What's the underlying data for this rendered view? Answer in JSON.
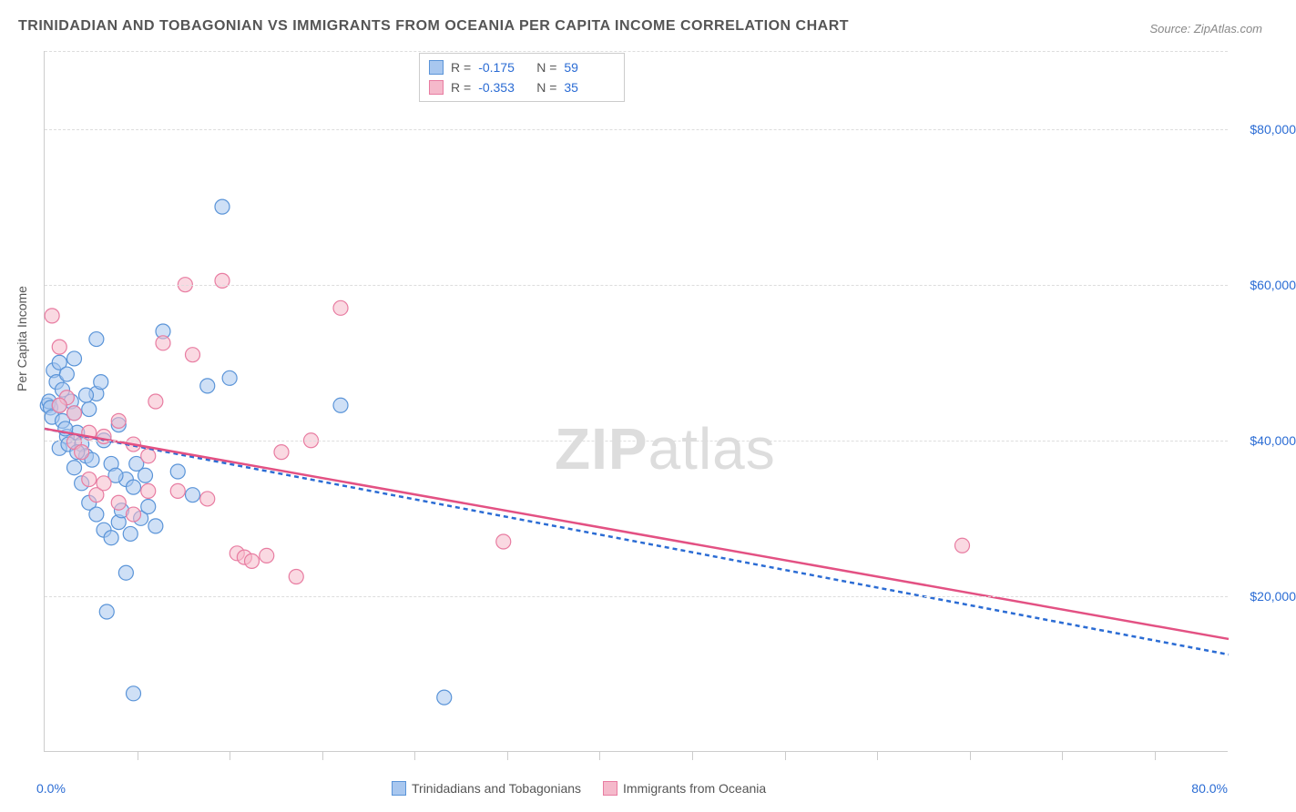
{
  "title": "TRINIDADIAN AND TOBAGONIAN VS IMMIGRANTS FROM OCEANIA PER CAPITA INCOME CORRELATION CHART",
  "source": "Source: ZipAtlas.com",
  "ylabel": "Per Capita Income",
  "xaxis": {
    "min_label": "0.0%",
    "max_label": "80.0%",
    "min": 0,
    "max": 80,
    "tick_step_pct": 6.25
  },
  "yaxis": {
    "min": 0,
    "max": 90000,
    "ticks": [
      {
        "v": 20000,
        "label": "$20,000"
      },
      {
        "v": 40000,
        "label": "$40,000"
      },
      {
        "v": 60000,
        "label": "$60,000"
      },
      {
        "v": 80000,
        "label": "$80,000"
      }
    ]
  },
  "series": [
    {
      "key": "trinidad",
      "label": "Trinidadians and Tobagonians",
      "fill": "#a8c7ef",
      "stroke": "#5a94d8",
      "line_color": "#2b6cd4",
      "line_dash": "5,4",
      "r_label": "R =",
      "r_value": "-0.175",
      "n_label": "N =",
      "n_value": "59",
      "trend": {
        "x1": 0,
        "y1": 41500,
        "x2": 80,
        "y2": 12500
      },
      "points": [
        [
          0.2,
          44500
        ],
        [
          0.3,
          45000
        ],
        [
          0.4,
          44200
        ],
        [
          0.5,
          43000
        ],
        [
          0.6,
          49000
        ],
        [
          0.8,
          47500
        ],
        [
          1.0,
          50000
        ],
        [
          1.2,
          46500
        ],
        [
          1.5,
          48500
        ],
        [
          1.8,
          45000
        ],
        [
          2.0,
          43500
        ],
        [
          2.2,
          41000
        ],
        [
          2.5,
          39500
        ],
        [
          2.8,
          38000
        ],
        [
          3.0,
          44000
        ],
        [
          3.5,
          46000
        ],
        [
          4.0,
          40000
        ],
        [
          4.5,
          37000
        ],
        [
          5.0,
          42000
        ],
        [
          5.5,
          35000
        ],
        [
          6.0,
          34000
        ],
        [
          6.5,
          30000
        ],
        [
          7.0,
          31500
        ],
        [
          7.5,
          29000
        ],
        [
          8.0,
          54000
        ],
        [
          9.0,
          36000
        ],
        [
          10.0,
          33000
        ],
        [
          11.0,
          47000
        ],
        [
          12.0,
          70000
        ],
        [
          12.5,
          48000
        ],
        [
          1.0,
          39000
        ],
        [
          1.5,
          40500
        ],
        [
          2.0,
          36500
        ],
        [
          2.5,
          34500
        ],
        [
          3.0,
          32000
        ],
        [
          3.5,
          30500
        ],
        [
          4.0,
          28500
        ],
        [
          4.5,
          27500
        ],
        [
          5.0,
          29500
        ],
        [
          5.5,
          23000
        ],
        [
          6.0,
          7500
        ],
        [
          1.0,
          44500
        ],
        [
          1.2,
          42500
        ],
        [
          1.4,
          41500
        ],
        [
          1.6,
          39500
        ],
        [
          2.2,
          38500
        ],
        [
          2.8,
          45800
        ],
        [
          3.2,
          37500
        ],
        [
          3.8,
          47500
        ],
        [
          4.2,
          18000
        ],
        [
          4.8,
          35500
        ],
        [
          5.2,
          31000
        ],
        [
          5.8,
          28000
        ],
        [
          6.2,
          37000
        ],
        [
          6.8,
          35500
        ],
        [
          20.0,
          44500
        ],
        [
          27.0,
          7000
        ],
        [
          2.0,
          50500
        ],
        [
          3.5,
          53000
        ]
      ]
    },
    {
      "key": "oceania",
      "label": "Immigrants from Oceania",
      "fill": "#f5b9cb",
      "stroke": "#e87ca1",
      "line_color": "#e35183",
      "line_dash": "",
      "r_label": "R =",
      "r_value": "-0.353",
      "n_label": "N =",
      "n_value": "35",
      "trend": {
        "x1": 0,
        "y1": 41500,
        "x2": 80,
        "y2": 14500
      },
      "points": [
        [
          0.5,
          56000
        ],
        [
          1.0,
          52000
        ],
        [
          1.5,
          45500
        ],
        [
          2.0,
          39800
        ],
        [
          2.5,
          38500
        ],
        [
          3.0,
          35000
        ],
        [
          3.5,
          33000
        ],
        [
          4.0,
          40500
        ],
        [
          5.0,
          42500
        ],
        [
          6.0,
          39500
        ],
        [
          7.0,
          38000
        ],
        [
          8.0,
          52500
        ],
        [
          9.0,
          33500
        ],
        [
          10.0,
          51000
        ],
        [
          11.0,
          32500
        ],
        [
          12.0,
          60500
        ],
        [
          13.0,
          25500
        ],
        [
          13.5,
          25000
        ],
        [
          14.0,
          24500
        ],
        [
          15.0,
          25200
        ],
        [
          16.0,
          38500
        ],
        [
          17.0,
          22500
        ],
        [
          18.0,
          40000
        ],
        [
          9.5,
          60000
        ],
        [
          1.0,
          44500
        ],
        [
          2.0,
          43500
        ],
        [
          3.0,
          41000
        ],
        [
          4.0,
          34500
        ],
        [
          5.0,
          32000
        ],
        [
          6.0,
          30500
        ],
        [
          7.0,
          33500
        ],
        [
          20.0,
          57000
        ],
        [
          31.0,
          27000
        ],
        [
          62.0,
          26500
        ],
        [
          7.5,
          45000
        ]
      ]
    }
  ],
  "watermark": {
    "bold": "ZIP",
    "rest": "atlas"
  },
  "colors": {
    "grid": "#dddddd",
    "axis": "#cccccc",
    "text": "#555555",
    "value": "#2b6cd4",
    "background": "#ffffff"
  },
  "marker_radius": 8,
  "marker_opacity": 0.55,
  "line_width": 2.5
}
